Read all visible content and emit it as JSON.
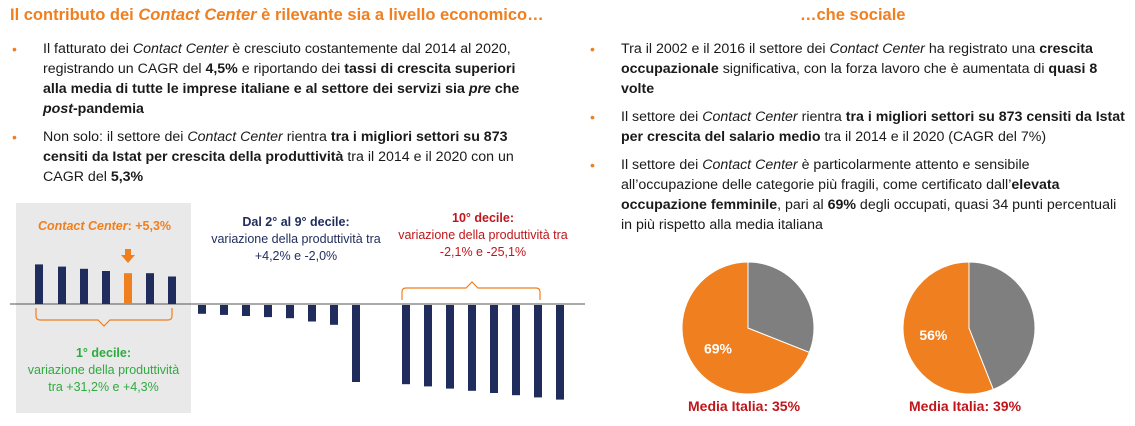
{
  "left_title": {
    "pre": "Il contributo dei ",
    "em": "Contact Center",
    "post": " è rilevante sia a livello economico…"
  },
  "right_title": "…che sociale",
  "left_bullets": [
    [
      {
        "t": "Il fatturato dei "
      },
      {
        "t": "Contact Center",
        "i": true
      },
      {
        "t": " è cresciuto costantemente dal 2014 al 2020, registrando un CAGR del "
      },
      {
        "t": "4,5%",
        "b": true
      },
      {
        "t": " e riportando dei "
      },
      {
        "t": "tassi di crescita superiori alla media di tutte le imprese italiane e al settore dei servizi sia ",
        "b": true
      },
      {
        "t": "pre",
        "b": true,
        "i": true
      },
      {
        "t": " che ",
        "b": true
      },
      {
        "t": "post",
        "b": true,
        "i": true
      },
      {
        "t": "-pandemia",
        "b": true
      }
    ],
    [
      {
        "t": "Non solo: il settore dei "
      },
      {
        "t": "Contact Center",
        "i": true
      },
      {
        "t": " rientra "
      },
      {
        "t": "tra i migliori settori su 873 censiti da Istat per crescita della produttività",
        "b": true
      },
      {
        "t": " tra il 2014 e il 2020 con un CAGR del "
      },
      {
        "t": "5,3%",
        "b": true
      }
    ]
  ],
  "right_bullets": [
    [
      {
        "t": "Tra il 2002 e il 2016 il settore dei "
      },
      {
        "t": "Contact Center",
        "i": true
      },
      {
        "t": " ha registrato una "
      },
      {
        "t": "crescita occupazionale",
        "b": true
      },
      {
        "t": " significativa, con la forza lavoro che è aumentata di "
      },
      {
        "t": "quasi 8 volte",
        "b": true
      }
    ],
    [
      {
        "t": "Il settore dei "
      },
      {
        "t": "Contact Center",
        "i": true
      },
      {
        "t": " rientra "
      },
      {
        "t": "tra i migliori settori su 873 censiti da Istat per crescita del salario medio",
        "b": true
      },
      {
        "t": " tra il 2014 e il 2020 (CAGR del 7%)"
      }
    ],
    [
      {
        "t": "Il settore dei "
      },
      {
        "t": "Contact Center",
        "i": true
      },
      {
        "t": " è particolarmente attento e sensibile all’occupazione delle categorie più fragili, come certificato dall’"
      },
      {
        "t": "elevata occupazione femminile",
        "b": true
      },
      {
        "t": ", pari al "
      },
      {
        "t": "69%",
        "b": true
      },
      {
        "t": " degli occupati, quasi 34 punti percentuali in più rispetto alla media italiana"
      }
    ]
  ],
  "bar_chart_labels": {
    "contact_center": {
      "em": "Contact Center",
      "value": ": +5,3%"
    },
    "decile1": {
      "title": "1° decile:",
      "line1": "variazione della produttività",
      "line2": "tra +31,2% e +4,3%"
    },
    "decile2_9": {
      "title": "Dal 2° al 9° decile:",
      "line1": "variazione della produttività tra",
      "line2": "+4,2% e -2,0%"
    },
    "decile10": {
      "title": "10° decile:",
      "line1": "variazione della produttività tra",
      "line2": "-2,1% e -25,1%"
    }
  },
  "colors": {
    "orange": "#f07f1f",
    "navy": "#1f2c5c",
    "green": "#2eab3f",
    "red": "#c0161b",
    "gray": "#7f7f7f"
  },
  "chart_data": [
    {
      "type": "bar",
      "bars": [
        {
          "value": 3.6,
          "highlight": false
        },
        {
          "value": 3.4,
          "highlight": false
        },
        {
          "value": 3.2,
          "highlight": false
        },
        {
          "value": 3.0,
          "highlight": false
        },
        {
          "value": 2.8,
          "highlight": true
        },
        {
          "value": 2.8,
          "highlight": false
        },
        {
          "value": 2.5,
          "highlight": false
        },
        {
          "value": -0.8,
          "highlight": false
        },
        {
          "value": -0.9,
          "highlight": false
        },
        {
          "value": -1.0,
          "highlight": false
        },
        {
          "value": -1.1,
          "highlight": false
        },
        {
          "value": -1.2,
          "highlight": false
        },
        {
          "value": -1.5,
          "highlight": false
        },
        {
          "value": -1.8,
          "highlight": false
        },
        {
          "value": -7.0,
          "highlight": false
        },
        {
          "value": -7.2,
          "highlight": false
        },
        {
          "value": -7.4,
          "highlight": false
        },
        {
          "value": -7.6,
          "highlight": false
        },
        {
          "value": -7.8,
          "highlight": false
        },
        {
          "value": -8.0,
          "highlight": false
        },
        {
          "value": -8.2,
          "highlight": false
        },
        {
          "value": -8.4,
          "highlight": false
        },
        {
          "value": -8.6,
          "highlight": false
        }
      ]
    },
    {
      "type": "pie",
      "slices": [
        {
          "value": 69,
          "label": "69%",
          "color": "#f07f1f"
        },
        {
          "value": 31,
          "label": "",
          "color": "#7f7f7f"
        }
      ],
      "caption": "Media Italia: 35%"
    },
    {
      "type": "pie",
      "slices": [
        {
          "value": 56,
          "label": "56%",
          "color": "#f07f1f"
        },
        {
          "value": 44,
          "label": "",
          "color": "#7f7f7f"
        }
      ],
      "caption": "Media Italia: 39%"
    }
  ]
}
